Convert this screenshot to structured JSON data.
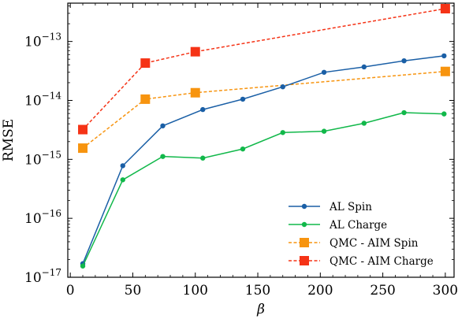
{
  "chart_data": {
    "type": "line",
    "xlabel": "β",
    "ylabel": "RMSE",
    "xlim": [
      -2,
      307
    ],
    "ylim_log10": [
      -17,
      -12.35
    ],
    "yscale": "log",
    "x_ticks": [
      0,
      50,
      100,
      150,
      200,
      250,
      300
    ],
    "y_tick_exponents": [
      -17,
      -16,
      -15,
      -14,
      -13
    ],
    "grid": false,
    "legend_position": "lower-right",
    "series": [
      {
        "name": "AL Spin",
        "color": "#1a5fa6",
        "linestyle": "solid",
        "marker": "circle",
        "x": [
          10,
          42,
          74,
          106,
          138,
          170,
          203,
          235,
          267,
          299
        ],
        "y": [
          1.7e-17,
          7.8e-16,
          3.7e-15,
          7e-15,
          1.05e-14,
          1.7e-14,
          3e-14,
          3.7e-14,
          4.7e-14,
          5.7e-14
        ]
      },
      {
        "name": "AL Charge",
        "color": "#11b84a",
        "linestyle": "solid",
        "marker": "circle",
        "x": [
          10,
          42,
          74,
          106,
          138,
          170,
          203,
          235,
          267,
          299
        ],
        "y": [
          1.55e-17,
          4.5e-16,
          1.12e-15,
          1.05e-15,
          1.5e-15,
          2.85e-15,
          3e-15,
          4.1e-15,
          6.2e-15,
          5.9e-15
        ]
      },
      {
        "name": "QMC - AIM Spin",
        "color": "#f7940f",
        "linestyle": "dashed",
        "marker": "square",
        "x": [
          10,
          60,
          100,
          300
        ],
        "y": [
          1.55e-15,
          1.05e-14,
          1.35e-14,
          3.1e-14
        ]
      },
      {
        "name": "QMC - AIM Charge",
        "color": "#f53316",
        "linestyle": "dashed",
        "marker": "square",
        "x": [
          10,
          60,
          100,
          300
        ],
        "y": [
          3.2e-15,
          4.3e-14,
          6.7e-14,
          3.6e-13
        ]
      }
    ]
  }
}
